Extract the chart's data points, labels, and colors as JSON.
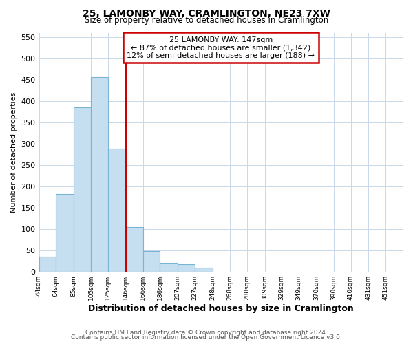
{
  "title": "25, LAMONBY WAY, CRAMLINGTON, NE23 7XW",
  "subtitle": "Size of property relative to detached houses in Cramlington",
  "xlabel": "Distribution of detached houses by size in Cramlington",
  "ylabel": "Number of detached properties",
  "footer_line1": "Contains HM Land Registry data © Crown copyright and database right 2024.",
  "footer_line2": "Contains public sector information licensed under the Open Government Licence v3.0.",
  "bar_left_edges": [
    44,
    64,
    85,
    105,
    125,
    146,
    166,
    186,
    207,
    227,
    248,
    268,
    288,
    309,
    329,
    349,
    370,
    390,
    410,
    431
  ],
  "bar_heights": [
    35,
    183,
    385,
    456,
    289,
    105,
    49,
    22,
    18,
    10,
    0,
    0,
    0,
    0,
    0,
    0,
    0,
    0,
    0,
    0
  ],
  "bar_widths": [
    20,
    21,
    20,
    20,
    21,
    20,
    20,
    21,
    20,
    21,
    20,
    20,
    21,
    20,
    20,
    21,
    20,
    20,
    21,
    20
  ],
  "tick_labels": [
    "44sqm",
    "64sqm",
    "85sqm",
    "105sqm",
    "125sqm",
    "146sqm",
    "166sqm",
    "186sqm",
    "207sqm",
    "227sqm",
    "248sqm",
    "268sqm",
    "288sqm",
    "309sqm",
    "329sqm",
    "349sqm",
    "370sqm",
    "390sqm",
    "410sqm",
    "431sqm",
    "451sqm"
  ],
  "bar_color": "#c6dff0",
  "bar_edge_color": "#7ab4d4",
  "reference_line_x": 146,
  "reference_line_color": "#cc0000",
  "annotation_title": "25 LAMONBY WAY: 147sqm",
  "annotation_line1": "← 87% of detached houses are smaller (1,342)",
  "annotation_line2": "12% of semi-detached houses are larger (188) →",
  "annotation_box_color": "#cc0000",
  "ylim": [
    0,
    560
  ],
  "xlim": [
    44,
    471
  ],
  "yticks": [
    0,
    50,
    100,
    150,
    200,
    250,
    300,
    350,
    400,
    450,
    500,
    550
  ],
  "background_color": "#ffffff",
  "grid_color": "#c8d8e8"
}
